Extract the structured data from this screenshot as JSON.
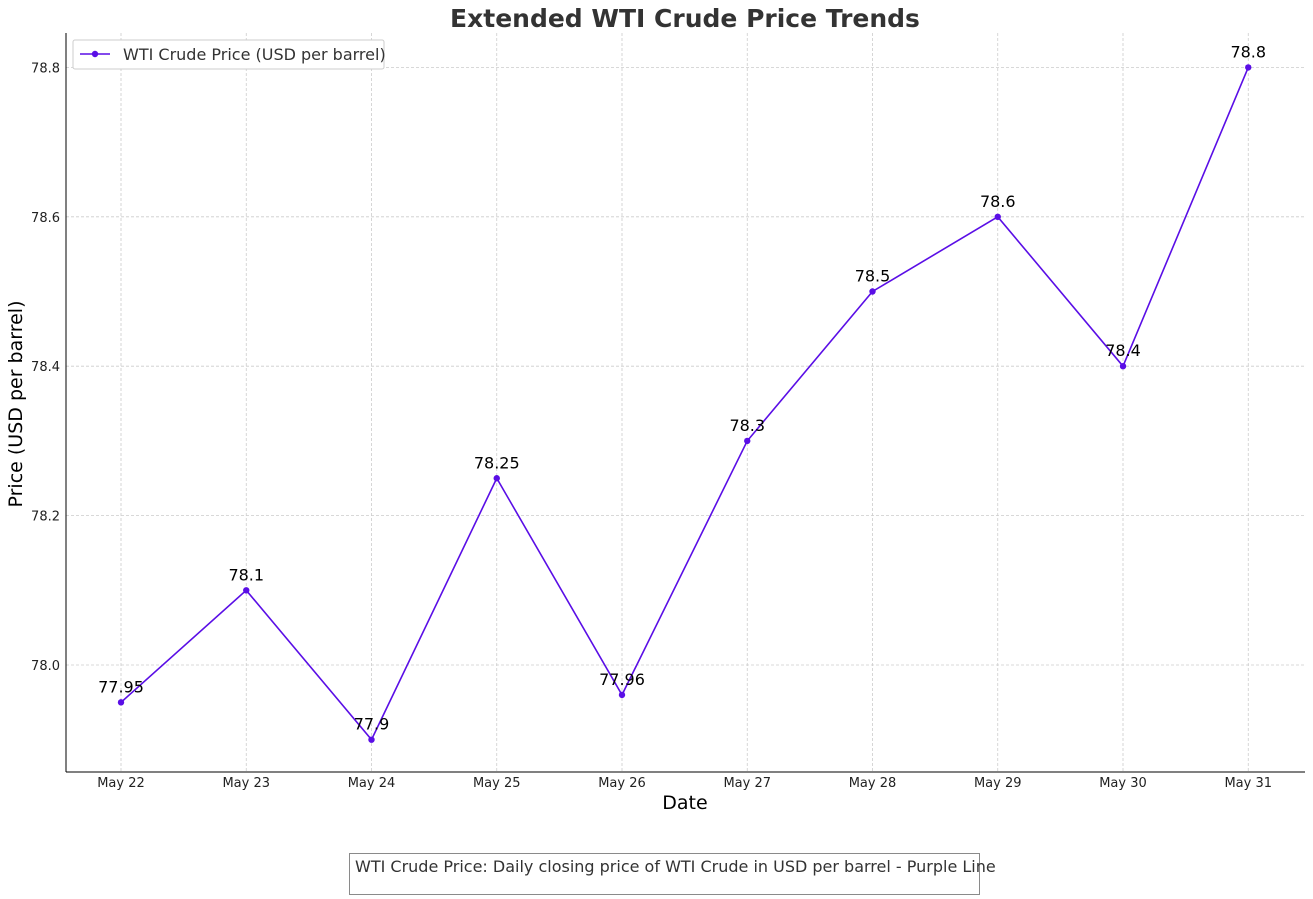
{
  "chart_data": {
    "type": "line",
    "title": "Extended WTI Crude Price Trends",
    "xlabel": "Date",
    "ylabel": "Price (USD per barrel)",
    "categories": [
      "May 22",
      "May 23",
      "May 24",
      "May 25",
      "May 26",
      "May 27",
      "May 28",
      "May 29",
      "May 30",
      "May 31"
    ],
    "series": [
      {
        "name": "WTI Crude Price (USD per barrel)",
        "values": [
          77.95,
          78.1,
          77.9,
          78.25,
          77.96,
          78.3,
          78.5,
          78.6,
          78.4,
          78.8
        ],
        "color": "#5a0ee6"
      }
    ],
    "data_labels": [
      "77.95",
      "78.1",
      "77.9",
      "78.25",
      "77.96",
      "78.3",
      "78.5",
      "78.6",
      "78.4",
      "78.8"
    ],
    "y_ticks": [
      "78.0",
      "78.2",
      "78.4",
      "78.6",
      "78.8"
    ],
    "y_tick_values": [
      78.0,
      78.2,
      78.4,
      78.6,
      78.8
    ],
    "ylim": [
      77.857,
      78.843
    ],
    "grid": true,
    "legend_position": "top-left"
  },
  "caption": "WTI Crude Price: Daily closing price of WTI Crude in USD per barrel - Purple Line"
}
